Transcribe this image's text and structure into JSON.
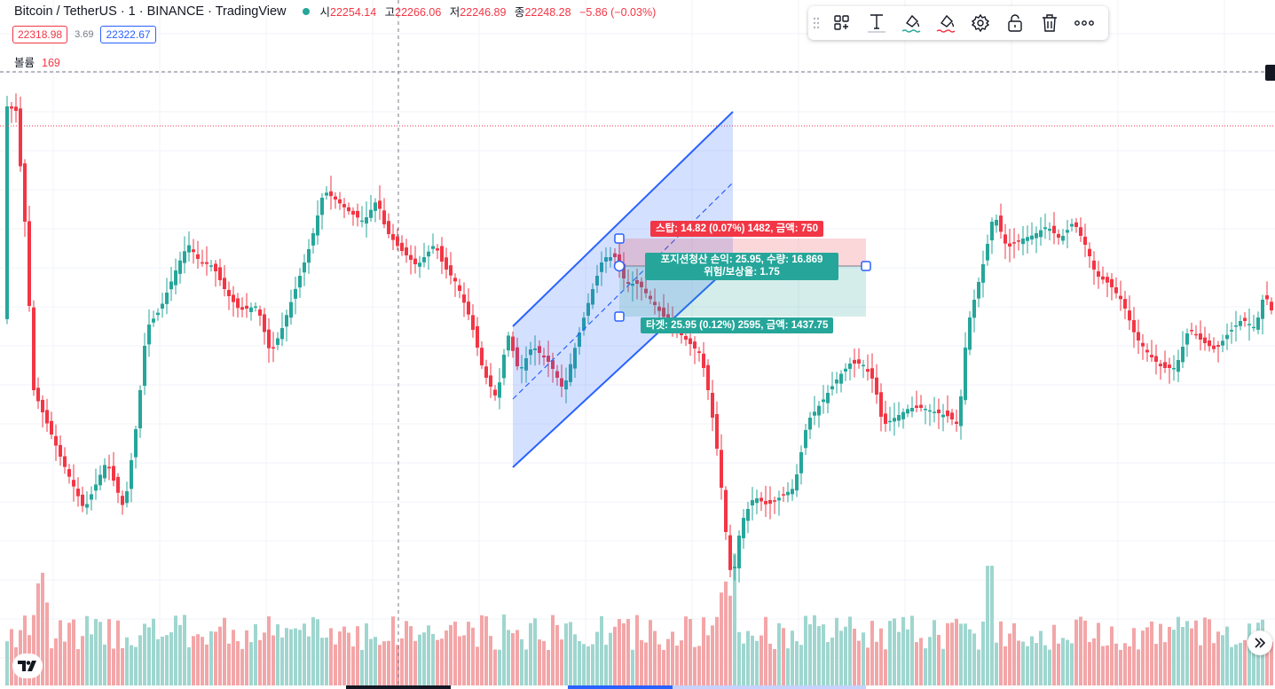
{
  "legend": {
    "symbol": "Bitcoin / TetherUS · 1 · BINANCE · TradingView",
    "ohlc": [
      {
        "k": "시",
        "v": "22254.14"
      },
      {
        "k": "고",
        "v": "22266.06"
      },
      {
        "k": "저",
        "v": "22246.89"
      },
      {
        "k": "종",
        "v": "22248.28"
      }
    ],
    "change": "−5.86 (−0.03%)",
    "bid": "22318.98",
    "spread": "3.69",
    "ask": "22322.67",
    "volume_label": "볼륨",
    "volume_value": "169"
  },
  "toolbar": {
    "items": [
      {
        "name": "template-icon"
      },
      {
        "name": "text-icon"
      },
      {
        "name": "fill-color-icon"
      },
      {
        "name": "line-color-icon"
      },
      {
        "name": "settings-gear-icon"
      },
      {
        "name": "lock-icon"
      },
      {
        "name": "delete-trash-icon"
      },
      {
        "name": "more-icon"
      }
    ]
  },
  "position_tool": {
    "stop_label": "스탑: 14.82 (0.07%) 1482, 금액: 750",
    "pos_line1": "포지션청산 손익: 25.95, 수량: 16.869",
    "pos_line2": "위험/보상율: 1.75",
    "target_label": "타겟: 25.95 (0.12%) 2595, 금액: 1437.75"
  },
  "colors": {
    "up": "#26a69a",
    "down": "#f23645",
    "vol_up": "#9fd6cf",
    "vol_down": "#f3a6a8",
    "channel": "#2962ff"
  },
  "chart_data": {
    "type": "candlestick",
    "candles_shown_as_marks": 143,
    "price_up_color": "#26a69a",
    "price_down_color": "#f23645"
  }
}
